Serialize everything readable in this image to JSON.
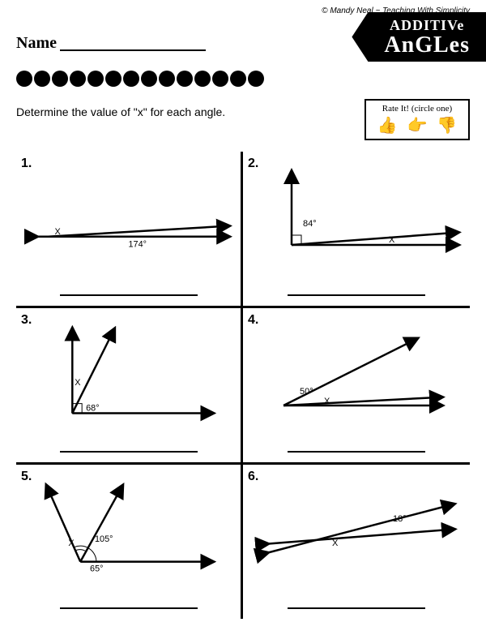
{
  "copyright": "© Mandy Neal ~ Teaching With Simplicity",
  "name_label": "Name",
  "title_line1": "ADDITIVe",
  "title_line2": "AnGLes",
  "instructions": "Determine the value of \"x\" for each angle.",
  "rate_label": "Rate It! (circle one)",
  "thumbs": {
    "up": "👍",
    "side": "👉",
    "down": "👎"
  },
  "dots_count": 14,
  "problems": [
    {
      "num": "1.",
      "x_label": "X",
      "angle": "174°"
    },
    {
      "num": "2.",
      "x_label": "X",
      "angle": "84°"
    },
    {
      "num": "3.",
      "x_label": "X",
      "angle": "68°"
    },
    {
      "num": "4.",
      "x_label": "X",
      "angle": "50°"
    },
    {
      "num": "5.",
      "x_label": "X",
      "angle1": "105°",
      "angle2": "65°"
    },
    {
      "num": "6.",
      "x_label": "X",
      "angle": "18°"
    }
  ],
  "colors": {
    "fg": "#000000",
    "bg": "#ffffff"
  }
}
